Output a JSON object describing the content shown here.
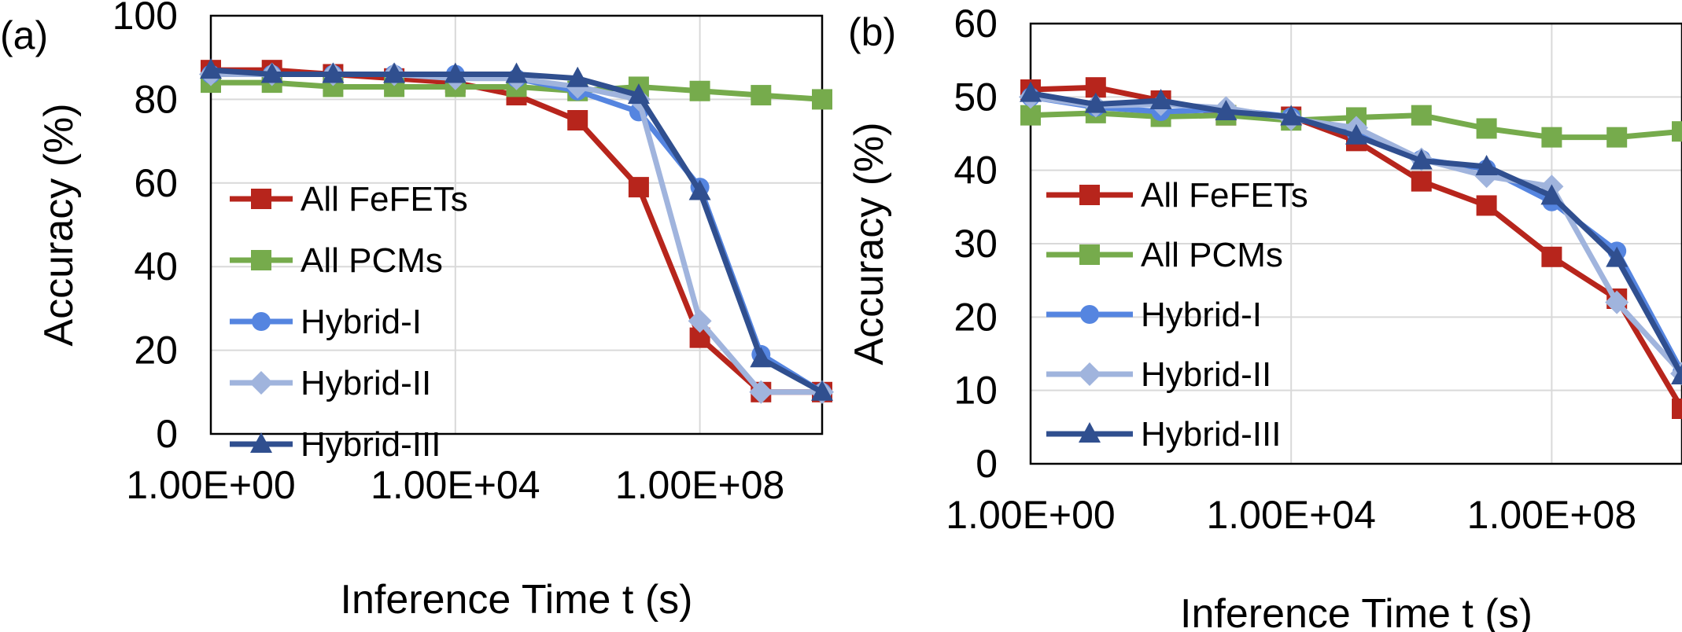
{
  "chart_data": [
    {
      "type": "line",
      "panel_label": "(a)",
      "xlabel": "Inference Time t (s)",
      "ylabel": "Accuracy (%)",
      "xscale": "log10",
      "xlim": [
        1,
        10000000000.0
      ],
      "ylim": [
        0,
        100
      ],
      "yticks": [
        0,
        20,
        40,
        60,
        80,
        100
      ],
      "xticks": [
        1,
        10000.0,
        100000000.0
      ],
      "xtick_labels": [
        "1.00E+00",
        "1.00E+04",
        "1.00E+08"
      ],
      "ytick_labels": [
        "0",
        "20",
        "40",
        "60",
        "80",
        "100"
      ],
      "grid": "horizontal",
      "legend_position": "left",
      "x": [
        1,
        10,
        100,
        1000,
        10000,
        100000,
        1000000,
        10000000,
        100000000,
        1000000000,
        10000000000
      ],
      "series": [
        {
          "name": "All FeFETs",
          "color": "#b7251c",
          "marker": "square",
          "values": [
            87,
            87,
            86,
            85,
            84,
            81,
            75,
            59,
            23,
            10,
            10
          ]
        },
        {
          "name": "All PCMs",
          "color": "#76ab4c",
          "marker": "square",
          "values": [
            84,
            84,
            83,
            83,
            83,
            83,
            82,
            83,
            82,
            81,
            80
          ]
        },
        {
          "name": "Hybrid-I",
          "color": "#5585e0",
          "marker": "circle",
          "values": [
            86,
            86,
            86,
            86,
            86,
            85,
            82,
            77,
            59,
            19,
            10
          ]
        },
        {
          "name": "Hybrid-II",
          "color": "#a0b4dd",
          "marker": "diamond",
          "values": [
            86,
            86,
            86,
            86,
            85,
            85,
            83,
            80,
            27,
            10,
            10
          ]
        },
        {
          "name": "Hybrid-III",
          "color": "#304f8f",
          "marker": "triangle",
          "values": [
            87,
            86,
            86,
            86,
            86,
            86,
            85,
            81,
            58,
            18,
            10
          ]
        }
      ]
    },
    {
      "type": "line",
      "panel_label": "(b)",
      "xlabel": "Inference Time t (s)",
      "ylabel": "Accuracy (%)",
      "xscale": "log10",
      "xlim": [
        1,
        10000000000.0
      ],
      "ylim": [
        0,
        60
      ],
      "yticks": [
        0,
        10,
        20,
        30,
        40,
        50,
        60
      ],
      "xticks": [
        1,
        10000.0,
        100000000.0
      ],
      "xtick_labels": [
        "1.00E+00",
        "1.00E+04",
        "1.00E+08"
      ],
      "ytick_labels": [
        "0",
        "10",
        "20",
        "30",
        "40",
        "50",
        "60"
      ],
      "grid": "horizontal",
      "legend_position": "left",
      "x": [
        1,
        10,
        100,
        1000,
        10000,
        100000,
        1000000,
        10000000,
        100000000,
        1000000000,
        10000000000
      ],
      "series": [
        {
          "name": "All FeFETs",
          "color": "#b7251c",
          "marker": "square",
          "values": [
            51,
            51.3,
            49.5,
            47.5,
            47.3,
            44,
            38.5,
            35.2,
            28.2,
            22.5,
            7.5
          ]
        },
        {
          "name": "All PCMs",
          "color": "#76ab4c",
          "marker": "square",
          "values": [
            47.5,
            47.8,
            47.3,
            47.5,
            46.8,
            47.2,
            47.5,
            45.7,
            44.5,
            44.5,
            45.3
          ]
        },
        {
          "name": "Hybrid-I",
          "color": "#5585e0",
          "marker": "circle",
          "values": [
            50,
            48.6,
            48,
            48.3,
            47.3,
            45,
            41.5,
            40.2,
            35.7,
            29,
            12.5
          ]
        },
        {
          "name": "Hybrid-II",
          "color": "#a0b4dd",
          "marker": "diamond",
          "values": [
            50,
            48.8,
            49,
            48.5,
            47,
            45.8,
            41.5,
            39.2,
            37.8,
            22,
            12.3
          ]
        },
        {
          "name": "Hybrid-III",
          "color": "#304f8f",
          "marker": "triangle",
          "values": [
            50.5,
            49,
            49.5,
            48,
            47.3,
            44.7,
            41.3,
            40.5,
            36.5,
            28,
            12
          ]
        }
      ]
    }
  ]
}
